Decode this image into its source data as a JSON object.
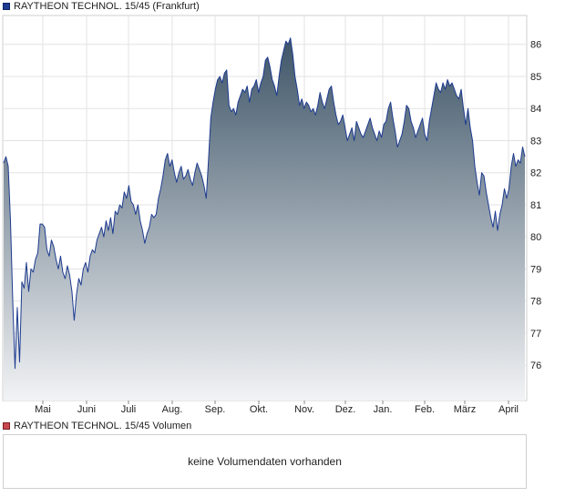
{
  "price_legend": {
    "label": "RAYTHEON TECHNOL. 15/45 (Frankfurt)",
    "color": "#1d3b8f"
  },
  "volume_legend": {
    "label": "RAYTHEON TECHNOL. 15/45 Volumen",
    "color": "#c9484f"
  },
  "volume_panel": {
    "message": "keine Volumendaten vorhanden"
  },
  "chart_data": {
    "type": "area",
    "title": "RAYTHEON TECHNOL. 15/45 (Frankfurt)",
    "xlabel": "",
    "ylabel": "",
    "x_tick_labels": [
      "Mai",
      "Juni",
      "Juli",
      "Aug.",
      "Sep.",
      "Okt.",
      "Nov.",
      "Dez.",
      "Jan.",
      "Feb.",
      "März",
      "April"
    ],
    "y_ticks": [
      76,
      77,
      78,
      79,
      80,
      81,
      82,
      83,
      84,
      85,
      86
    ],
    "ylim": [
      74.9,
      86.9
    ],
    "grid": true,
    "fill_gradient": [
      "#3e5568",
      "#f2f3f5"
    ],
    "line_color": "#1d3b8f",
    "series": [
      {
        "values": [
          82.3,
          82.5,
          82.2,
          80.5,
          78.0,
          75.9,
          77.8,
          76.1,
          78.6,
          78.4,
          79.2,
          78.3,
          79.0,
          78.9,
          79.3,
          79.5,
          80.4,
          80.4,
          80.3,
          79.6,
          79.4,
          79.9,
          79.7,
          79.3,
          79.0,
          79.4,
          78.9,
          78.7,
          79.1,
          78.8,
          78.3,
          77.4,
          78.2,
          78.7,
          78.5,
          79.0,
          79.2,
          78.9,
          79.4,
          79.6,
          79.5,
          79.9,
          80.1,
          80.3,
          80.0,
          80.5,
          80.2,
          80.6,
          80.1,
          80.8,
          80.7,
          81.0,
          80.9,
          81.4,
          81.2,
          81.6,
          81.1,
          81.0,
          80.7,
          81.0,
          80.5,
          80.2,
          79.8,
          80.1,
          80.3,
          80.7,
          80.6,
          80.7,
          81.2,
          81.5,
          81.9,
          82.4,
          82.6,
          82.2,
          82.4,
          82.0,
          81.7,
          82.0,
          82.2,
          81.8,
          81.9,
          82.1,
          81.8,
          81.6,
          82.0,
          82.3,
          82.1,
          81.9,
          81.6,
          81.2,
          82.4,
          83.7,
          84.2,
          84.6,
          84.9,
          85.0,
          84.8,
          85.1,
          85.2,
          84.1,
          83.9,
          84.0,
          83.8,
          84.2,
          84.4,
          84.6,
          84.5,
          84.7,
          84.2,
          84.6,
          84.7,
          84.9,
          84.5,
          84.8,
          85.0,
          85.5,
          85.6,
          85.3,
          84.9,
          84.7,
          84.4,
          85.0,
          85.5,
          85.8,
          86.1,
          86.0,
          86.2,
          85.7,
          85.0,
          84.6,
          84.1,
          84.3,
          84.0,
          84.2,
          84.1,
          83.9,
          84.0,
          83.8,
          84.1,
          84.5,
          84.2,
          84.0,
          84.3,
          84.6,
          84.7,
          84.2,
          83.8,
          83.5,
          83.6,
          83.8,
          83.4,
          83.0,
          83.2,
          83.4,
          83.0,
          83.6,
          83.4,
          83.2,
          83.1,
          83.3,
          83.5,
          83.7,
          83.4,
          83.2,
          83.0,
          83.3,
          83.1,
          83.5,
          83.6,
          84.0,
          84.2,
          83.7,
          83.3,
          82.8,
          83.0,
          83.2,
          83.6,
          84.1,
          84.0,
          83.6,
          83.4,
          83.1,
          83.3,
          83.5,
          83.7,
          83.2,
          83.0,
          83.6,
          84.0,
          84.4,
          84.8,
          84.6,
          84.5,
          84.8,
          84.6,
          84.9,
          84.7,
          84.8,
          84.6,
          84.4,
          84.3,
          84.6,
          84.0,
          83.5,
          84.0,
          83.4,
          83.0,
          82.2,
          81.7,
          81.3,
          82.0,
          81.9,
          81.4,
          81.0,
          80.6,
          80.3,
          80.8,
          80.2,
          80.7,
          81.0,
          81.5,
          81.2,
          81.5,
          82.2,
          82.6,
          82.2,
          82.4,
          82.3,
          82.8,
          82.5
        ]
      }
    ]
  }
}
